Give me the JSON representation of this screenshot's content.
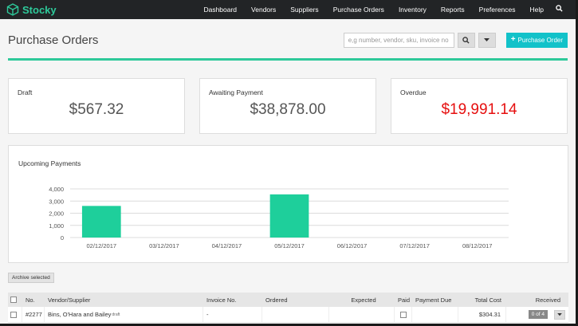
{
  "brand": {
    "name": "Stocky"
  },
  "nav": {
    "items": [
      "Dashboard",
      "Vendors",
      "Suppliers",
      "Purchase Orders",
      "Inventory",
      "Reports",
      "Preferences",
      "Help"
    ],
    "search_icon": "search-icon"
  },
  "header": {
    "title": "Purchase Orders",
    "search_placeholder": "e,g number, vendor, sku, invoice no",
    "new_button": "Purchase Order"
  },
  "stats": [
    {
      "label": "Draft",
      "value": "$567.32",
      "color": "#555555"
    },
    {
      "label": "Awaiting Payment",
      "value": "$38,878.00",
      "color": "#555555"
    },
    {
      "label": "Overdue",
      "value": "$19,991.14",
      "color": "#e60f0f"
    }
  ],
  "chart_data": {
    "type": "bar",
    "title": "Upcoming Payments",
    "categories": [
      "02/12/2017",
      "03/12/2017",
      "04/12/2017",
      "05/12/2017",
      "06/12/2017",
      "07/12/2017",
      "08/12/2017"
    ],
    "values": [
      2600,
      0,
      0,
      3550,
      0,
      0,
      0
    ],
    "yticks": [
      "0",
      "1,000",
      "2,000",
      "3,000",
      "4,000"
    ],
    "ylim": [
      0,
      4000
    ],
    "grid": true,
    "color": "#1ecf9b"
  },
  "actions": {
    "archive": "Archive selected"
  },
  "table": {
    "headers": [
      "No.",
      "Vendor/Supplier",
      "Invoice No.",
      "Ordered",
      "Expected",
      "Paid",
      "Payment Due",
      "Total Cost",
      "Received"
    ],
    "rows": [
      {
        "no": "#2277",
        "vendor": "Bins, O'Hara and Bailey",
        "tag": "draft",
        "invoice": "-",
        "ordered": "",
        "expected": "",
        "payment_due": "",
        "total": "$304.31",
        "received": "0 of 4"
      }
    ]
  }
}
